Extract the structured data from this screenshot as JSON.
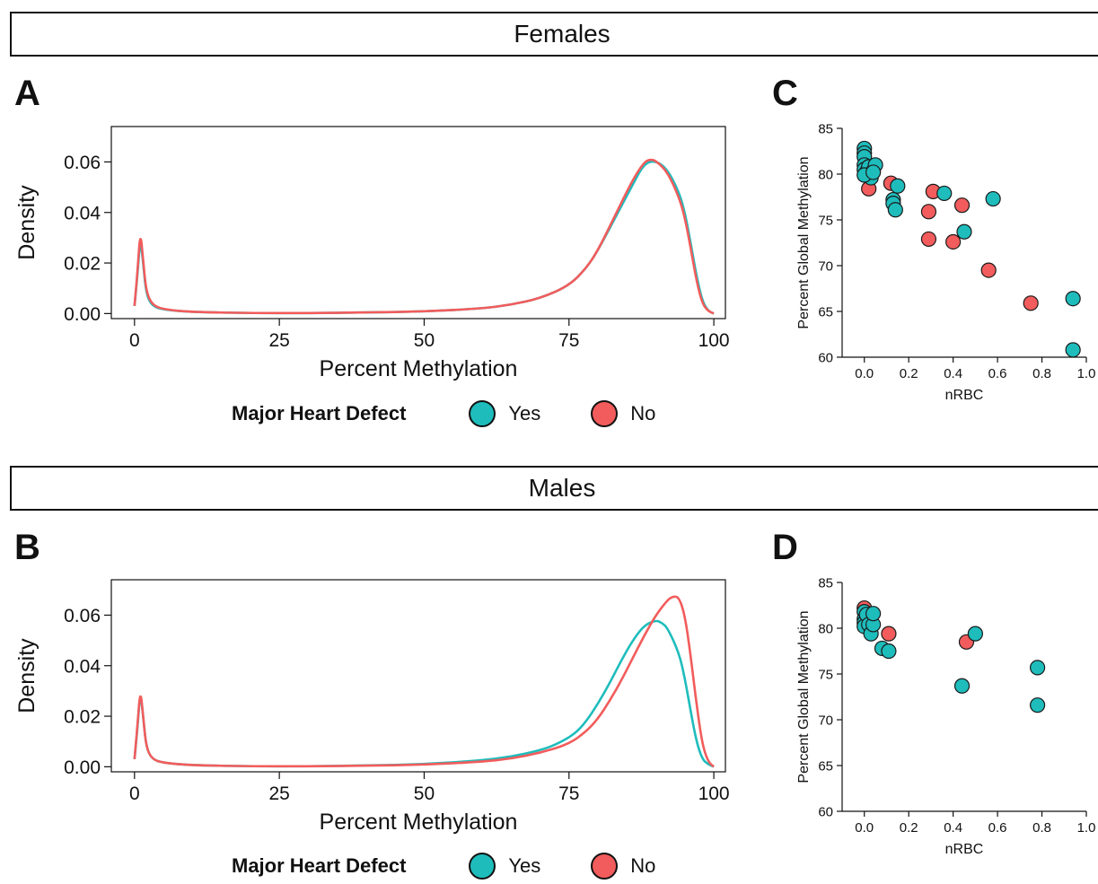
{
  "colors": {
    "yes": "#1fbcbc",
    "no": "#f25c5c",
    "axis": "#111111"
  },
  "strips": {
    "females": "Females",
    "males": "Males"
  },
  "panel_labels": {
    "a": "A",
    "b": "B",
    "c": "C",
    "d": "D"
  },
  "legend": {
    "title": "Major Heart Defect",
    "yes": "Yes",
    "no": "No"
  },
  "chart_data": [
    {
      "id": "A",
      "type": "line",
      "xlabel": "Percent Methylation",
      "ylabel": "Density",
      "xlim": [
        -4,
        102
      ],
      "ylim": [
        -0.002,
        0.074
      ],
      "xticks": [
        0,
        25,
        50,
        75,
        100
      ],
      "yticks": [
        0,
        0.02,
        0.04,
        0.06
      ],
      "ytick_labels": [
        "0.00",
        "0.02",
        "0.04",
        "0.06"
      ],
      "series": [
        {
          "name": "Yes",
          "color": "yes",
          "x": [
            0,
            0.5,
            1,
            1.5,
            2,
            3,
            5,
            10,
            20,
            30,
            40,
            50,
            60,
            65,
            70,
            75,
            78,
            80,
            83,
            86,
            88,
            90,
            92,
            94,
            95,
            96,
            97,
            98,
            99,
            100
          ],
          "y": [
            0.003,
            0.015,
            0.03,
            0.02,
            0.008,
            0.003,
            0.0015,
            0.0006,
            0.0002,
            0.0002,
            0.0004,
            0.0008,
            0.002,
            0.0035,
            0.006,
            0.011,
            0.018,
            0.025,
            0.038,
            0.051,
            0.0595,
            0.0605,
            0.057,
            0.048,
            0.04,
            0.028,
            0.015,
            0.005,
            0.001,
            0.0
          ]
        },
        {
          "name": "No",
          "color": "no",
          "x": [
            0,
            0.5,
            1,
            1.5,
            2,
            3,
            5,
            10,
            20,
            30,
            40,
            50,
            60,
            65,
            70,
            75,
            78,
            80,
            83,
            86,
            88,
            89,
            90,
            92,
            94,
            95,
            96,
            97,
            98,
            99,
            100
          ],
          "y": [
            0.003,
            0.016,
            0.033,
            0.021,
            0.009,
            0.0035,
            0.0016,
            0.0006,
            0.0002,
            0.0002,
            0.0004,
            0.0008,
            0.002,
            0.0035,
            0.006,
            0.011,
            0.018,
            0.025,
            0.039,
            0.053,
            0.06,
            0.061,
            0.0605,
            0.056,
            0.046,
            0.038,
            0.026,
            0.013,
            0.004,
            0.001,
            0.0
          ]
        }
      ]
    },
    {
      "id": "B",
      "type": "line",
      "xlabel": "Percent Methylation",
      "ylabel": "Density",
      "xlim": [
        -4,
        102
      ],
      "ylim": [
        -0.002,
        0.074
      ],
      "xticks": [
        0,
        25,
        50,
        75,
        100
      ],
      "yticks": [
        0,
        0.02,
        0.04,
        0.06
      ],
      "ytick_labels": [
        "0.00",
        "0.02",
        "0.04",
        "0.06"
      ],
      "series": [
        {
          "name": "Yes",
          "color": "yes",
          "x": [
            0,
            0.5,
            1,
            1.5,
            2,
            3,
            5,
            10,
            20,
            30,
            40,
            50,
            60,
            65,
            70,
            73,
            76,
            78,
            80,
            82,
            84,
            86,
            88,
            90,
            91,
            92,
            94,
            95,
            96,
            97,
            98,
            99,
            100
          ],
          "y": [
            0.003,
            0.015,
            0.03,
            0.02,
            0.008,
            0.003,
            0.0015,
            0.0006,
            0.0002,
            0.0002,
            0.0005,
            0.001,
            0.0025,
            0.004,
            0.0065,
            0.009,
            0.013,
            0.018,
            0.025,
            0.033,
            0.042,
            0.05,
            0.056,
            0.058,
            0.057,
            0.055,
            0.045,
            0.035,
            0.022,
            0.01,
            0.003,
            0.001,
            0.0
          ]
        },
        {
          "name": "No",
          "color": "no",
          "x": [
            0,
            0.5,
            1,
            1.5,
            2,
            3,
            5,
            10,
            20,
            30,
            40,
            50,
            60,
            65,
            70,
            75,
            78,
            80,
            82,
            84,
            86,
            88,
            90,
            92,
            93,
            94,
            95,
            96,
            97,
            98,
            99,
            100
          ],
          "y": [
            0.003,
            0.016,
            0.031,
            0.02,
            0.008,
            0.003,
            0.0015,
            0.0006,
            0.0002,
            0.0002,
            0.0004,
            0.0008,
            0.002,
            0.0032,
            0.0055,
            0.009,
            0.014,
            0.019,
            0.026,
            0.034,
            0.043,
            0.052,
            0.06,
            0.066,
            0.0675,
            0.067,
            0.06,
            0.044,
            0.025,
            0.009,
            0.002,
            0.0
          ]
        }
      ]
    },
    {
      "id": "C",
      "type": "scatter",
      "xlabel": "nRBC",
      "ylabel": "Percent Global Methylation",
      "xlim": [
        -0.1,
        1.0
      ],
      "ylim": [
        60,
        85
      ],
      "xticks": [
        0,
        0.2,
        0.4,
        0.6,
        0.8,
        1.0
      ],
      "xtick_labels": [
        "0.0",
        "0.2",
        "0.4",
        "0.6",
        "0.8",
        "1.0"
      ],
      "yticks": [
        60,
        65,
        70,
        75,
        80,
        85
      ],
      "series": [
        {
          "name": "No",
          "color": "no",
          "x": [
            0.02,
            0.12,
            0.31,
            0.44,
            0.29,
            0.29,
            0.4,
            0.56,
            0.75
          ],
          "y": [
            78.4,
            79.0,
            78.1,
            76.6,
            75.9,
            72.9,
            72.6,
            69.5,
            65.9
          ]
        },
        {
          "name": "Yes",
          "color": "yes",
          "x": [
            0.0,
            0.0,
            0.0,
            0.0,
            0.0,
            0.01,
            0.02,
            0.03,
            0.04,
            0.05,
            0.0,
            0.04,
            0.13,
            0.13,
            0.14,
            0.15,
            0.36,
            0.45,
            0.58,
            0.94,
            0.94
          ],
          "y": [
            82.8,
            82.3,
            81.9,
            81.0,
            80.5,
            80.2,
            80.8,
            79.6,
            80.3,
            81.0,
            79.9,
            80.2,
            77.2,
            76.8,
            76.1,
            78.7,
            77.9,
            73.7,
            77.3,
            66.4,
            60.8
          ]
        }
      ]
    },
    {
      "id": "D",
      "type": "scatter",
      "xlabel": "nRBC",
      "ylabel": "Percent Global Methylation",
      "xlim": [
        -0.1,
        1.0
      ],
      "ylim": [
        60,
        85
      ],
      "xticks": [
        0,
        0.2,
        0.4,
        0.6,
        0.8,
        1.0
      ],
      "xtick_labels": [
        "0.0",
        "0.2",
        "0.4",
        "0.6",
        "0.8",
        "1.0"
      ],
      "yticks": [
        60,
        65,
        70,
        75,
        80,
        85
      ],
      "series": [
        {
          "name": "No",
          "color": "no",
          "x": [
            0.0,
            0.11,
            0.46
          ],
          "y": [
            82.2,
            79.4,
            78.5
          ]
        },
        {
          "name": "Yes",
          "color": "yes",
          "x": [
            0.0,
            0.0,
            0.0,
            0.0,
            0.01,
            0.02,
            0.03,
            0.04,
            0.04,
            0.08,
            0.11,
            0.44,
            0.5,
            0.78,
            0.78
          ],
          "y": [
            81.8,
            81.0,
            80.6,
            80.2,
            81.5,
            80.4,
            79.4,
            80.4,
            81.6,
            77.8,
            77.5,
            73.7,
            79.4,
            75.7,
            71.6
          ]
        }
      ]
    }
  ]
}
